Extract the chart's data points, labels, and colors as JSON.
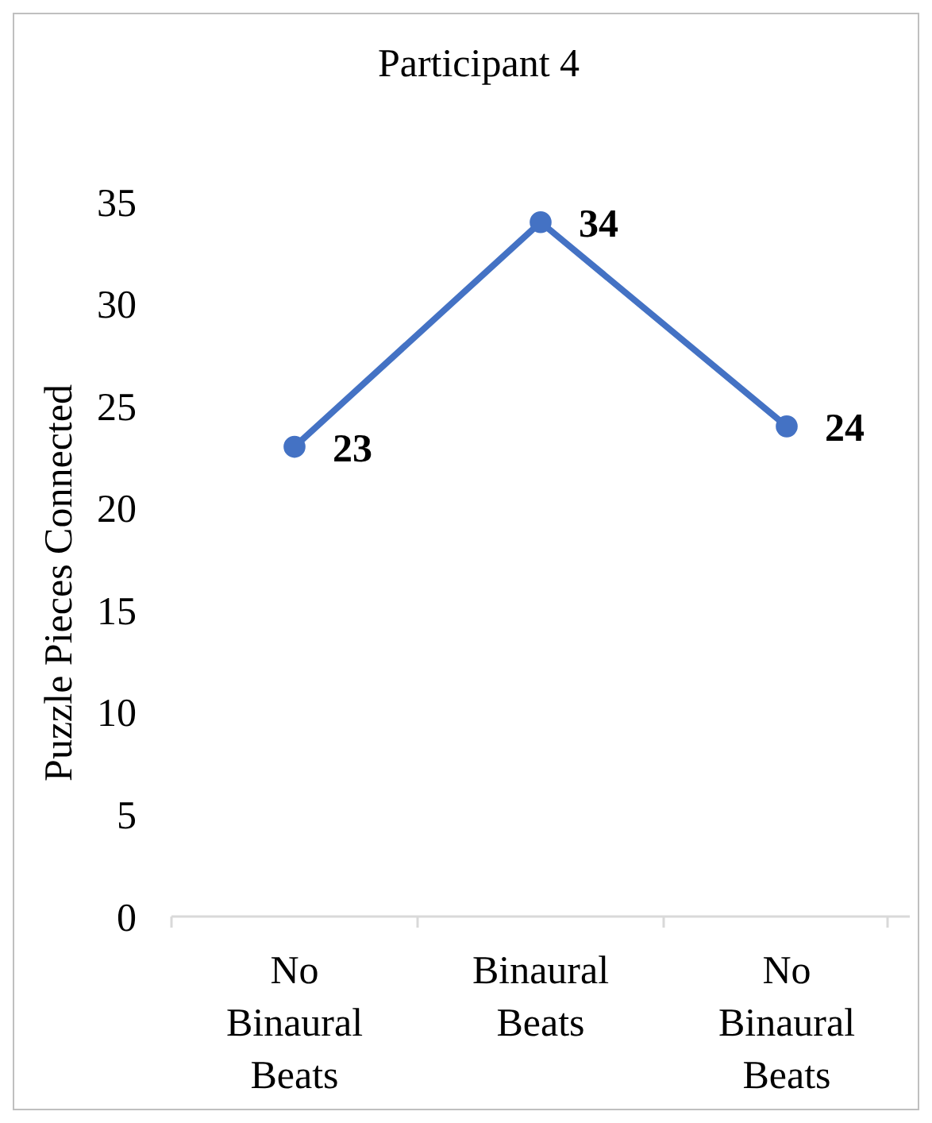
{
  "chart_data": {
    "type": "line",
    "title": "Participant 4",
    "ylabel": "Puzzle Pieces Connected",
    "categories": [
      "No Binaural Beats",
      "Binaural Beats",
      "No Binaural Beats"
    ],
    "series": [
      {
        "color": "#4472c4",
        "values": [
          23,
          34,
          24
        ]
      }
    ],
    "ylim": [
      0,
      35
    ],
    "yticks": [
      0,
      5,
      10,
      15,
      20,
      25,
      30,
      35
    ],
    "grid": false,
    "marker": "circle",
    "line_style": "solid",
    "data_labels": true
  }
}
